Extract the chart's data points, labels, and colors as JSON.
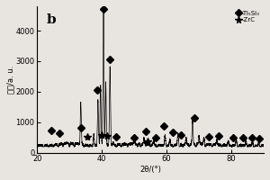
{
  "title": "b",
  "xlabel": "2θ/(°)",
  "ylabel": "强度/a. u.",
  "xlim": [
    20,
    90
  ],
  "ylim": [
    0,
    4800
  ],
  "yticks": [
    0,
    1000,
    2000,
    3000,
    4000
  ],
  "xticks": [
    20,
    40,
    60,
    80
  ],
  "background_color": "#e8e4df",
  "legend": {
    "diamond_label": "-Ti₅Si₃",
    "star_label": "-ZrC"
  },
  "diamond_markers": [
    [
      24.5,
      720
    ],
    [
      27.0,
      630
    ],
    [
      33.5,
      800
    ],
    [
      38.5,
      2050
    ],
    [
      40.5,
      4720
    ],
    [
      42.5,
      3050
    ],
    [
      44.5,
      520
    ],
    [
      50.0,
      500
    ],
    [
      53.5,
      700
    ],
    [
      56.5,
      500
    ],
    [
      59.0,
      870
    ],
    [
      62.0,
      650
    ],
    [
      64.5,
      580
    ],
    [
      68.5,
      1150
    ],
    [
      73.0,
      530
    ],
    [
      76.0,
      560
    ],
    [
      80.5,
      480
    ],
    [
      83.5,
      490
    ],
    [
      86.5,
      490
    ],
    [
      88.5,
      470
    ]
  ],
  "star_markers": [
    [
      35.5,
      530
    ],
    [
      40.0,
      580
    ],
    [
      41.5,
      560
    ],
    [
      54.0,
      360
    ]
  ],
  "peaks": [
    [
      33.5,
      1600
    ],
    [
      37.5,
      600
    ],
    [
      38.8,
      1700
    ],
    [
      39.6,
      2200
    ],
    [
      40.5,
      4600
    ],
    [
      41.2,
      2300
    ],
    [
      42.5,
      2800
    ],
    [
      43.5,
      320
    ],
    [
      50.0,
      370
    ],
    [
      53.0,
      420
    ],
    [
      56.0,
      380
    ],
    [
      59.5,
      550
    ],
    [
      61.0,
      420
    ],
    [
      63.5,
      620
    ],
    [
      66.0,
      450
    ],
    [
      68.0,
      980
    ],
    [
      70.0,
      500
    ],
    [
      71.5,
      430
    ],
    [
      75.5,
      400
    ],
    [
      79.0,
      370
    ],
    [
      81.5,
      420
    ],
    [
      84.5,
      380
    ],
    [
      86.5,
      360
    ],
    [
      88.5,
      350
    ]
  ],
  "baseline": 230
}
